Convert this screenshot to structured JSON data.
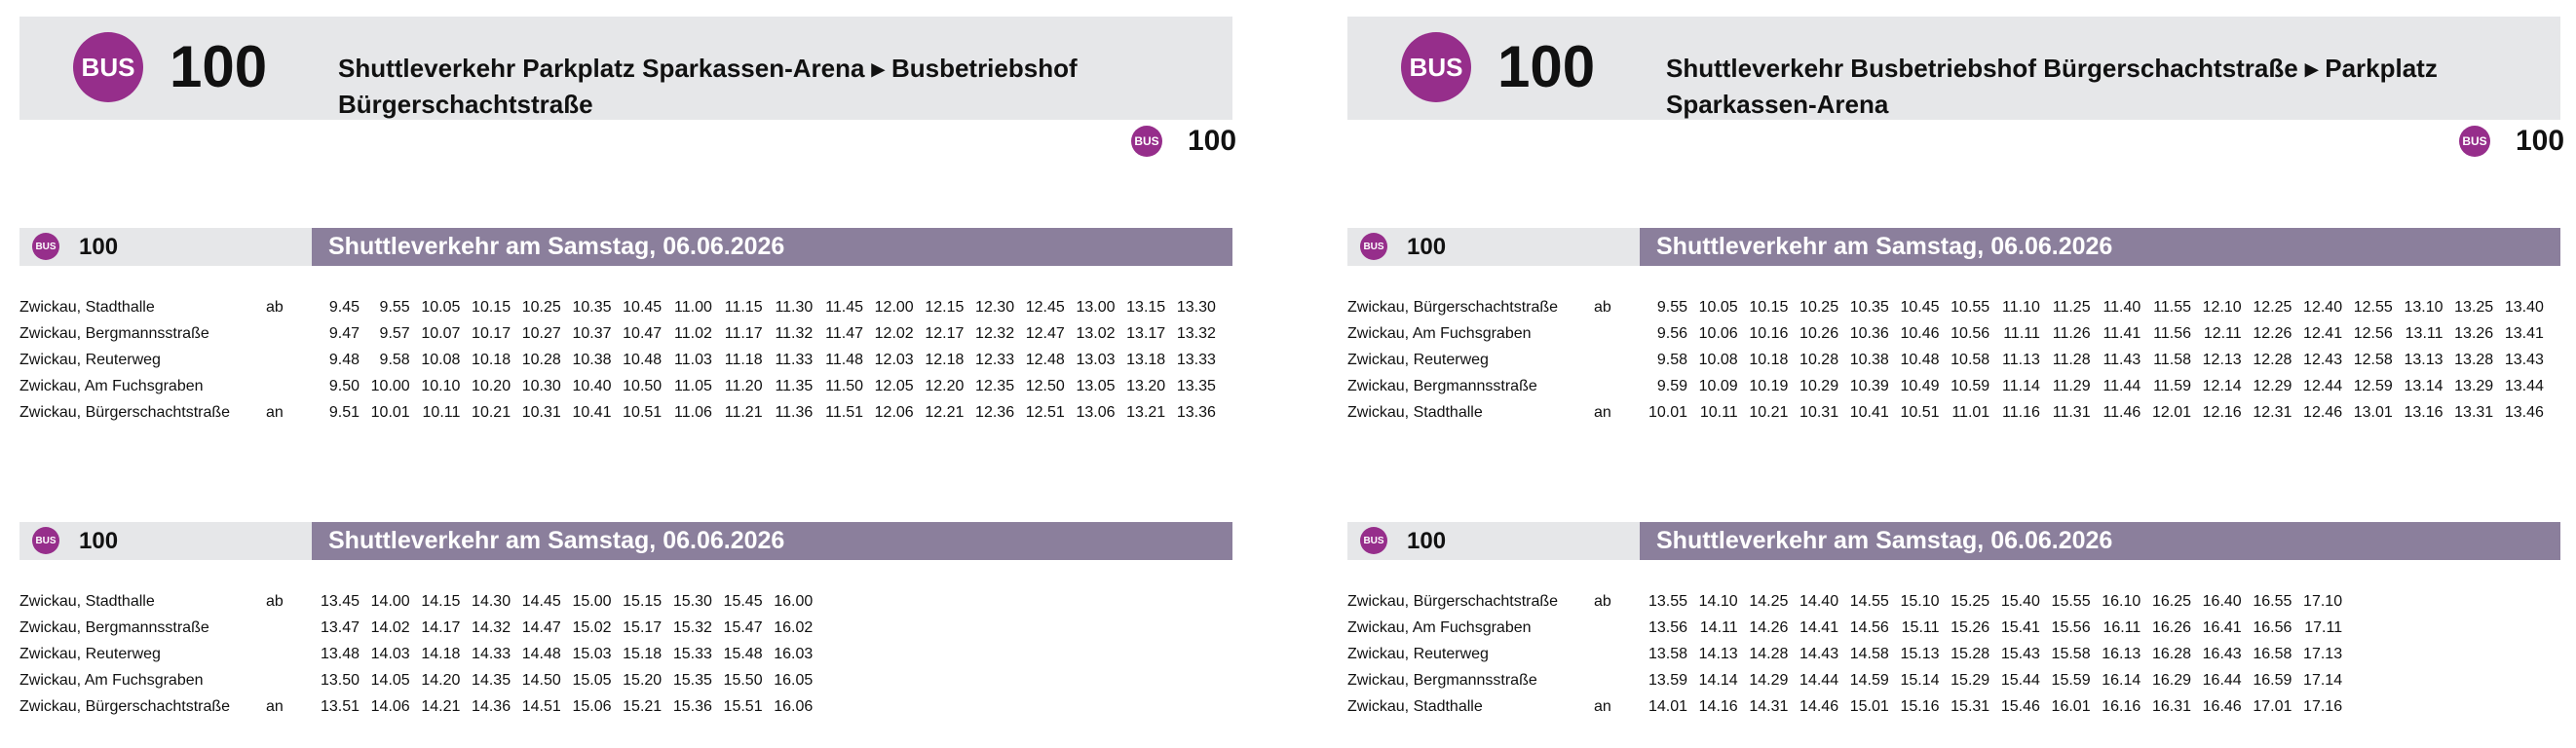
{
  "panels": [
    {
      "header": {
        "badge": "BUS",
        "line": "100",
        "title": "Shuttleverkehr Parkplatz Sparkassen-Arena ▸ Busbetriebshof Bürgerschachtstraße",
        "badge_small": "BUS",
        "line_small": "100"
      },
      "sections": [
        {
          "badge": "BUS",
          "line": "100",
          "title": "Shuttleverkehr am Samstag, 06.06.2026",
          "rows": [
            {
              "stop": "Zwickau, Stadthalle",
              "mark": "ab",
              "times": [
                "9.45",
                "9.55",
                "10.05",
                "10.15",
                "10.25",
                "10.35",
                "10.45",
                "11.00",
                "11.15",
                "11.30",
                "11.45",
                "12.00",
                "12.15",
                "12.30",
                "12.45",
                "13.00",
                "13.15",
                "13.30"
              ]
            },
            {
              "stop": "Zwickau, Bergmannsstraße",
              "times": [
                "9.47",
                "9.57",
                "10.07",
                "10.17",
                "10.27",
                "10.37",
                "10.47",
                "11.02",
                "11.17",
                "11.32",
                "11.47",
                "12.02",
                "12.17",
                "12.32",
                "12.47",
                "13.02",
                "13.17",
                "13.32"
              ]
            },
            {
              "stop": "Zwickau, Reuterweg",
              "times": [
                "9.48",
                "9.58",
                "10.08",
                "10.18",
                "10.28",
                "10.38",
                "10.48",
                "11.03",
                "11.18",
                "11.33",
                "11.48",
                "12.03",
                "12.18",
                "12.33",
                "12.48",
                "13.03",
                "13.18",
                "13.33"
              ]
            },
            {
              "stop": "Zwickau, Am Fuchsgraben",
              "times": [
                "9.50",
                "10.00",
                "10.10",
                "10.20",
                "10.30",
                "10.40",
                "10.50",
                "11.05",
                "11.20",
                "11.35",
                "11.50",
                "12.05",
                "12.20",
                "12.35",
                "12.50",
                "13.05",
                "13.20",
                "13.35"
              ]
            },
            {
              "stop": "Zwickau, Bürgerschachtstraße",
              "mark": "an",
              "times": [
                "9.51",
                "10.01",
                "10.11",
                "10.21",
                "10.31",
                "10.41",
                "10.51",
                "11.06",
                "11.21",
                "11.36",
                "11.51",
                "12.06",
                "12.21",
                "12.36",
                "12.51",
                "13.06",
                "13.21",
                "13.36"
              ]
            }
          ]
        },
        {
          "badge": "BUS",
          "line": "100",
          "title": "Shuttleverkehr am Samstag, 06.06.2026",
          "rows": [
            {
              "stop": "Zwickau, Stadthalle",
              "mark": "ab",
              "times": [
                "13.45",
                "14.00",
                "14.15",
                "14.30",
                "14.45",
                "15.00",
                "15.15",
                "15.30",
                "15.45",
                "16.00"
              ]
            },
            {
              "stop": "Zwickau, Bergmannsstraße",
              "times": [
                "13.47",
                "14.02",
                "14.17",
                "14.32",
                "14.47",
                "15.02",
                "15.17",
                "15.32",
                "15.47",
                "16.02"
              ]
            },
            {
              "stop": "Zwickau, Reuterweg",
              "times": [
                "13.48",
                "14.03",
                "14.18",
                "14.33",
                "14.48",
                "15.03",
                "15.18",
                "15.33",
                "15.48",
                "16.03"
              ]
            },
            {
              "stop": "Zwickau, Am Fuchsgraben",
              "times": [
                "13.50",
                "14.05",
                "14.20",
                "14.35",
                "14.50",
                "15.05",
                "15.20",
                "15.35",
                "15.50",
                "16.05"
              ]
            },
            {
              "stop": "Zwickau, Bürgerschachtstraße",
              "mark": "an",
              "times": [
                "13.51",
                "14.06",
                "14.21",
                "14.36",
                "14.51",
                "15.06",
                "15.21",
                "15.36",
                "15.51",
                "16.06"
              ]
            }
          ]
        }
      ]
    },
    {
      "header": {
        "badge": "BUS",
        "line": "100",
        "title": "Shuttleverkehr Busbetriebshof Bürgerschachtstraße ▸ Parkplatz Sparkassen-Arena",
        "badge_small": "BUS",
        "line_small": "100"
      },
      "sections": [
        {
          "badge": "BUS",
          "line": "100",
          "title": "Shuttleverkehr am Samstag, 06.06.2026",
          "rows": [
            {
              "stop": "Zwickau, Bürgerschachtstraße",
              "mark": "ab",
              "times": [
                "9.55",
                "10.05",
                "10.15",
                "10.25",
                "10.35",
                "10.45",
                "10.55",
                "11.10",
                "11.25",
                "11.40",
                "11.55",
                "12.10",
                "12.25",
                "12.40",
                "12.55",
                "13.10",
                "13.25",
                "13.40"
              ]
            },
            {
              "stop": "Zwickau, Am Fuchsgraben",
              "times": [
                "9.56",
                "10.06",
                "10.16",
                "10.26",
                "10.36",
                "10.46",
                "10.56",
                "11.11",
                "11.26",
                "11.41",
                "11.56",
                "12.11",
                "12.26",
                "12.41",
                "12.56",
                "13.11",
                "13.26",
                "13.41"
              ]
            },
            {
              "stop": "Zwickau, Reuterweg",
              "times": [
                "9.58",
                "10.08",
                "10.18",
                "10.28",
                "10.38",
                "10.48",
                "10.58",
                "11.13",
                "11.28",
                "11.43",
                "11.58",
                "12.13",
                "12.28",
                "12.43",
                "12.58",
                "13.13",
                "13.28",
                "13.43"
              ]
            },
            {
              "stop": "Zwickau, Bergmannsstraße",
              "times": [
                "9.59",
                "10.09",
                "10.19",
                "10.29",
                "10.39",
                "10.49",
                "10.59",
                "11.14",
                "11.29",
                "11.44",
                "11.59",
                "12.14",
                "12.29",
                "12.44",
                "12.59",
                "13.14",
                "13.29",
                "13.44"
              ]
            },
            {
              "stop": "Zwickau, Stadthalle",
              "mark": "an",
              "times": [
                "10.01",
                "10.11",
                "10.21",
                "10.31",
                "10.41",
                "10.51",
                "11.01",
                "11.16",
                "11.31",
                "11.46",
                "12.01",
                "12.16",
                "12.31",
                "12.46",
                "13.01",
                "13.16",
                "13.31",
                "13.46"
              ]
            }
          ]
        },
        {
          "badge": "BUS",
          "line": "100",
          "title": "Shuttleverkehr am Samstag, 06.06.2026",
          "rows": [
            {
              "stop": "Zwickau, Bürgerschachtstraße",
              "mark": "ab",
              "times": [
                "13.55",
                "14.10",
                "14.25",
                "14.40",
                "14.55",
                "15.10",
                "15.25",
                "15.40",
                "15.55",
                "16.10",
                "16.25",
                "16.40",
                "16.55",
                "17.10"
              ]
            },
            {
              "stop": "Zwickau, Am Fuchsgraben",
              "times": [
                "13.56",
                "14.11",
                "14.26",
                "14.41",
                "14.56",
                "15.11",
                "15.26",
                "15.41",
                "15.56",
                "16.11",
                "16.26",
                "16.41",
                "16.56",
                "17.11"
              ]
            },
            {
              "stop": "Zwickau, Reuterweg",
              "times": [
                "13.58",
                "14.13",
                "14.28",
                "14.43",
                "14.58",
                "15.13",
                "15.28",
                "15.43",
                "15.58",
                "16.13",
                "16.28",
                "16.43",
                "16.58",
                "17.13"
              ]
            },
            {
              "stop": "Zwickau, Bergmannsstraße",
              "times": [
                "13.59",
                "14.14",
                "14.29",
                "14.44",
                "14.59",
                "15.14",
                "15.29",
                "15.44",
                "15.59",
                "16.14",
                "16.29",
                "16.44",
                "16.59",
                "17.14"
              ]
            },
            {
              "stop": "Zwickau, Stadthalle",
              "mark": "an",
              "times": [
                "14.01",
                "14.16",
                "14.31",
                "14.46",
                "15.01",
                "15.16",
                "15.31",
                "15.46",
                "16.01",
                "16.16",
                "16.31",
                "16.46",
                "17.01",
                "17.16"
              ]
            }
          ]
        }
      ]
    }
  ]
}
